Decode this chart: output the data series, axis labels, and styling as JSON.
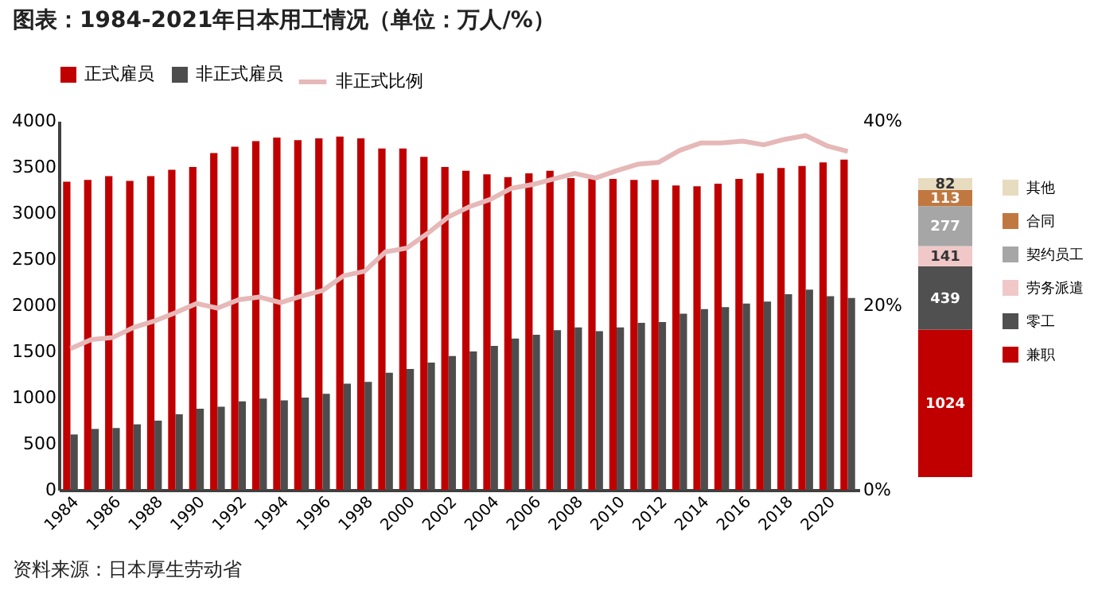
{
  "chart_data": [
    {
      "type": "bar",
      "title": "图表：1984-2021年日本用工情况（单位：万人/%）",
      "annotations": [
        "资料来源：日本厚生劳动省"
      ],
      "categories": [
        "1984",
        null,
        "1986",
        null,
        "1988",
        null,
        "1990",
        null,
        "1992",
        null,
        "1994",
        null,
        "1996",
        null,
        "1998",
        null,
        "2000",
        null,
        "2002",
        null,
        "2004",
        null,
        "2006",
        null,
        "2008",
        null,
        "2010",
        null,
        "2012",
        null,
        "2014",
        null,
        "2016",
        null,
        "2018",
        null,
        "2020",
        null
      ],
      "series": [
        {
          "name": "正式雇员",
          "color": "#c00000",
          "values": [
            3340,
            3360,
            3400,
            3350,
            3400,
            3470,
            3500,
            3650,
            3720,
            3780,
            3820,
            3790,
            3810,
            3830,
            3810,
            3700,
            3700,
            3610,
            3500,
            3460,
            3420,
            3390,
            3430,
            3460,
            3380,
            3380,
            3370,
            3360,
            3360,
            3300,
            3290,
            3320,
            3370,
            3430,
            3490,
            3510,
            3550,
            3580
          ]
        },
        {
          "name": "非正式雇员",
          "color": "#4d4d4d",
          "values": [
            600,
            660,
            670,
            710,
            750,
            820,
            880,
            900,
            960,
            990,
            970,
            1000,
            1040,
            1150,
            1170,
            1270,
            1310,
            1380,
            1450,
            1500,
            1560,
            1640,
            1680,
            1730,
            1760,
            1720,
            1760,
            1810,
            1820,
            1910,
            1960,
            1980,
            2020,
            2040,
            2120,
            2170,
            2100,
            2080
          ]
        },
        {
          "name": "非正式比例",
          "color": "#e6b8b8",
          "type": "line",
          "axis": "y2",
          "values": [
            15.3,
            16.3,
            16.5,
            17.6,
            18.3,
            19.2,
            20.2,
            19.7,
            20.6,
            20.9,
            20.3,
            21.0,
            21.6,
            23.2,
            23.7,
            25.8,
            26.2,
            27.8,
            29.6,
            30.7,
            31.5,
            32.7,
            33.1,
            33.7,
            34.3,
            33.8,
            34.6,
            35.3,
            35.5,
            36.8,
            37.6,
            37.6,
            37.8,
            37.4,
            38.0,
            38.4,
            37.3,
            36.7
          ]
        }
      ],
      "ylim": [
        0,
        4000
      ],
      "yticks": [
        0,
        500,
        1000,
        1500,
        2000,
        2500,
        3000,
        3500,
        4000
      ],
      "y2lim": [
        0,
        40
      ],
      "y2ticks": [
        {
          "value": 0,
          "label": "0%"
        },
        {
          "value": 20,
          "label": "20%"
        },
        {
          "value": 40,
          "label": "40%"
        }
      ],
      "legend": "top",
      "grid": false
    },
    {
      "type": "bar",
      "stacked": true,
      "categories": [
        null
      ],
      "data_labels": true,
      "legend": "right",
      "series": [
        {
          "name": "兼职",
          "color": "#c00000",
          "values": [
            1024
          ]
        },
        {
          "name": "零工",
          "color": "#505050",
          "values": [
            439
          ]
        },
        {
          "name": "劳务派遣",
          "color": "#f0c8c8",
          "values": [
            141
          ]
        },
        {
          "name": "契约员工",
          "color": "#a6a6a6",
          "values": [
            277
          ]
        },
        {
          "name": "合同",
          "color": "#c07840",
          "values": [
            113
          ]
        },
        {
          "name": "其他",
          "color": "#e8dcc0",
          "values": [
            82
          ]
        }
      ]
    }
  ]
}
